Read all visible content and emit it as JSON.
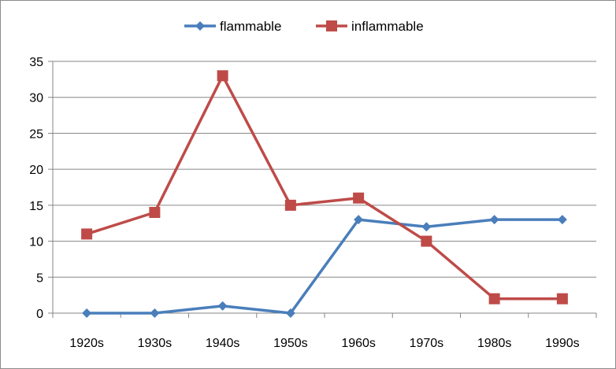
{
  "chart_data": {
    "type": "line",
    "categories": [
      "1920s",
      "1930s",
      "1940s",
      "1950s",
      "1960s",
      "1970s",
      "1980s",
      "1990s"
    ],
    "series": [
      {
        "name": "flammable",
        "values": [
          0,
          0,
          1,
          0,
          13,
          12,
          13,
          13
        ],
        "color": "#4a7ebb",
        "marker": "diamond"
      },
      {
        "name": "inflammable",
        "values": [
          11,
          14,
          33,
          15,
          16,
          10,
          2,
          2
        ],
        "color": "#be4b48",
        "marker": "square"
      }
    ],
    "y_ticks": [
      "0",
      "5",
      "10",
      "15",
      "20",
      "25",
      "30",
      "35"
    ],
    "ylim": [
      0,
      35
    ],
    "grid": true,
    "legend_position": "top"
  }
}
